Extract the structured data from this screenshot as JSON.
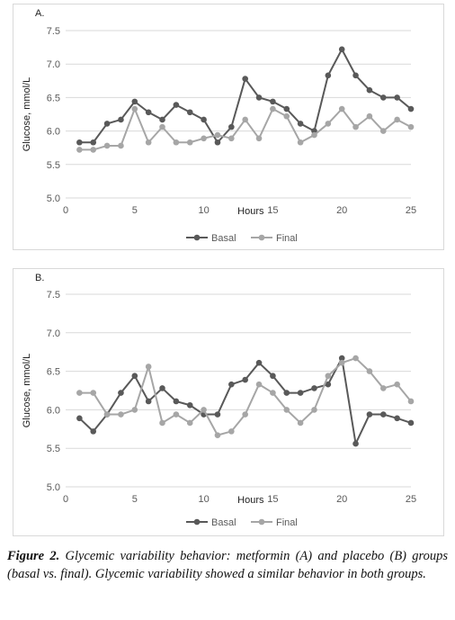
{
  "figure": {
    "caption_label": "Figure 2.",
    "caption_text": "Glycemic variability behavior: metformin (A) and placebo (B) groups (basal vs. final). Glycemic variability showed a similar behavior in both groups."
  },
  "colors": {
    "basal": "#595959",
    "final": "#a6a6a6",
    "grid": "#d9d9d9",
    "axis_text": "#595959"
  },
  "chart_data": [
    {
      "panel_label": "A.",
      "type": "line",
      "xlabel": "Hours",
      "ylabel": "Glucose, mmol/L",
      "xlim": [
        0,
        25
      ],
      "ylim": [
        5.0,
        7.5
      ],
      "x_ticks": [
        0,
        5,
        10,
        15,
        20,
        25
      ],
      "y_ticks": [
        "5.0",
        "5.5",
        "6.0",
        "6.5",
        "7.0",
        "7.5"
      ],
      "grid": true,
      "legend": "bottom",
      "x": [
        1,
        2,
        3,
        4,
        5,
        6,
        7,
        8,
        9,
        10,
        11,
        12,
        13,
        14,
        15,
        16,
        17,
        18,
        19,
        20,
        21,
        22,
        23,
        24,
        25
      ],
      "series": [
        {
          "name": "Basal",
          "values": [
            5.83,
            5.83,
            6.11,
            6.17,
            6.44,
            6.28,
            6.17,
            6.39,
            6.28,
            6.17,
            5.83,
            6.06,
            6.78,
            6.5,
            6.44,
            6.33,
            6.11,
            6.0,
            6.83,
            7.22,
            6.83,
            6.61,
            6.5,
            6.5,
            6.33
          ]
        },
        {
          "name": "Final",
          "values": [
            5.72,
            5.72,
            5.78,
            5.78,
            6.33,
            5.83,
            6.06,
            5.83,
            5.83,
            5.89,
            5.94,
            5.89,
            6.17,
            5.89,
            6.33,
            6.22,
            5.83,
            5.94,
            6.11,
            6.33,
            6.06,
            6.22,
            6.0,
            6.17,
            6.06
          ]
        }
      ]
    },
    {
      "panel_label": "B.",
      "type": "line",
      "xlabel": "Hours",
      "ylabel": "Glucose, mmol/L",
      "xlim": [
        0,
        25
      ],
      "ylim": [
        5.0,
        7.5
      ],
      "x_ticks": [
        0,
        5,
        10,
        15,
        20,
        25
      ],
      "y_ticks": [
        "5.0",
        "5.5",
        "6.0",
        "6.5",
        "7.0",
        "7.5"
      ],
      "grid": true,
      "legend": "bottom",
      "x": [
        1,
        2,
        3,
        4,
        5,
        6,
        7,
        8,
        9,
        10,
        11,
        12,
        13,
        14,
        15,
        16,
        17,
        18,
        19,
        20,
        21,
        22,
        23,
        24,
        25
      ],
      "series": [
        {
          "name": "Basal",
          "values": [
            5.89,
            5.72,
            5.94,
            6.22,
            6.44,
            6.11,
            6.28,
            6.11,
            6.06,
            5.94,
            5.94,
            6.33,
            6.39,
            6.61,
            6.44,
            6.22,
            6.22,
            6.28,
            6.33,
            6.67,
            5.56,
            5.94,
            5.94,
            5.89,
            5.83
          ]
        },
        {
          "name": "Final",
          "values": [
            6.22,
            6.22,
            5.94,
            5.94,
            6.0,
            6.56,
            5.83,
            5.94,
            5.83,
            6.0,
            5.67,
            5.72,
            5.94,
            6.33,
            6.22,
            6.0,
            5.83,
            6.0,
            6.44,
            6.61,
            6.67,
            6.5,
            6.28,
            6.33,
            6.11
          ]
        }
      ]
    }
  ]
}
